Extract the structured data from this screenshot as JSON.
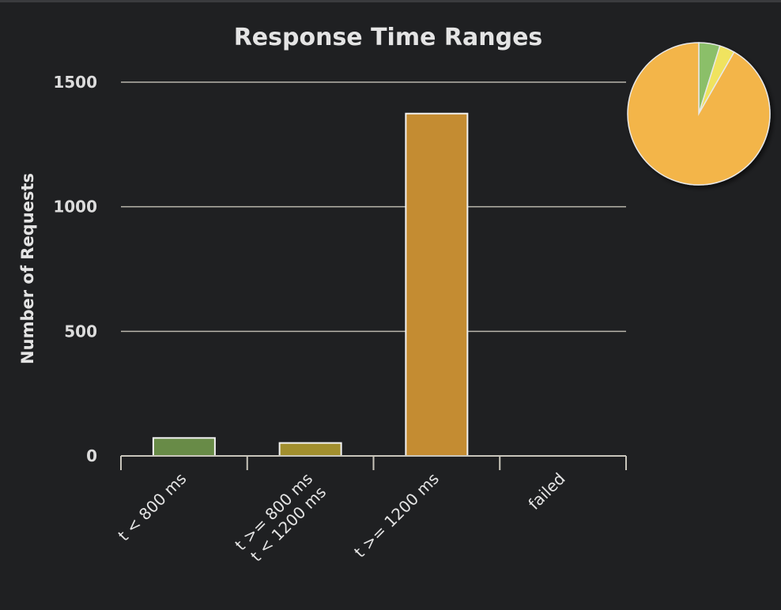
{
  "chart_data": {
    "type": "bar",
    "title": "Response Time Ranges",
    "xlabel": "",
    "ylabel": "Number of Requests",
    "ylim": [
      0,
      1500
    ],
    "yticks": [
      "0",
      "500",
      "1000",
      "1500"
    ],
    "ytick_values": [
      0,
      500,
      1000,
      1500
    ],
    "grid": true,
    "categories": [
      [
        "t < 800 ms"
      ],
      [
        "t >= 800 ms",
        "t < 1200 ms"
      ],
      [
        "t >= 1200 ms"
      ],
      [
        "failed"
      ]
    ],
    "values": [
      72,
      52,
      1374,
      0
    ],
    "colors": [
      "#688b47",
      "#a28f2e",
      "#c48c32",
      "#c44a3e"
    ],
    "pie": {
      "placement": "top-right",
      "colors": [
        "#8bbf69",
        "#f0e35e",
        "#f3b548",
        "#d9534f"
      ]
    }
  }
}
